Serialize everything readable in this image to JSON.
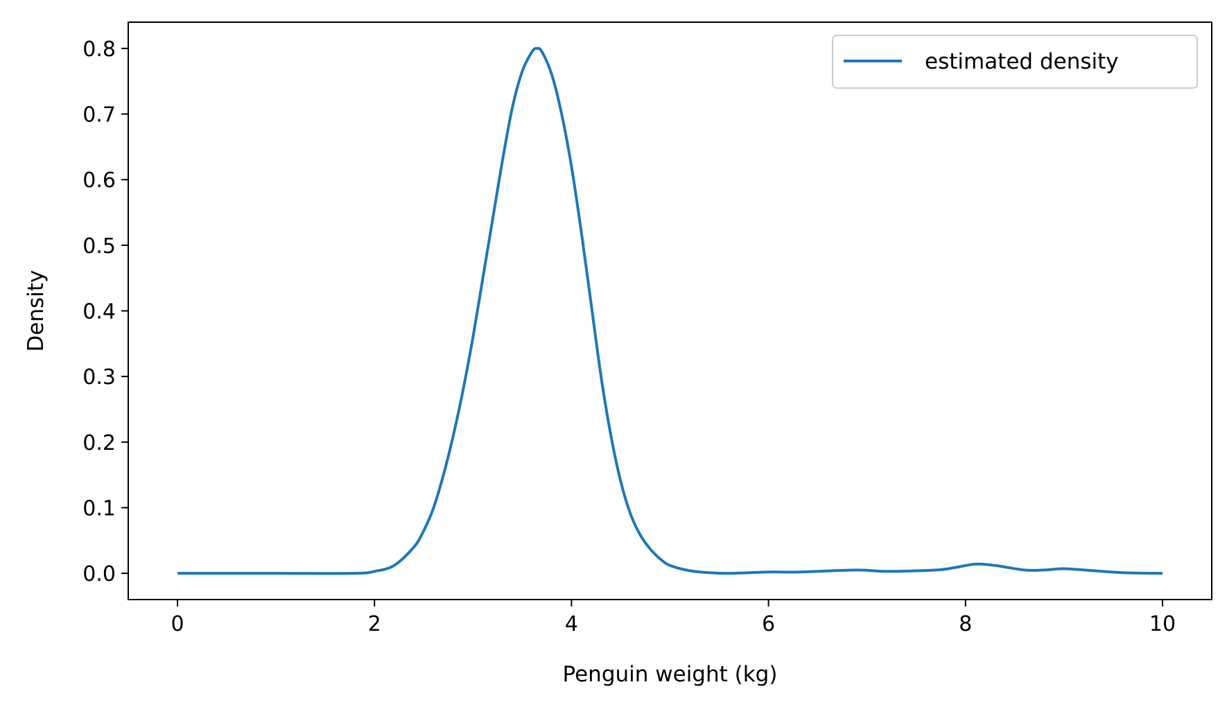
{
  "chart_data": {
    "type": "line",
    "title": "",
    "xlabel": "Penguin weight (kg)",
    "ylabel": "Density",
    "xlim": [
      -0.5,
      10.5
    ],
    "ylim": [
      -0.04,
      0.84
    ],
    "xticks": [
      0,
      2,
      4,
      6,
      8,
      10
    ],
    "xtick_labels": [
      "0",
      "2",
      "4",
      "6",
      "8",
      "10"
    ],
    "yticks": [
      0.0,
      0.1,
      0.2,
      0.3,
      0.4,
      0.5,
      0.6,
      0.7,
      0.8
    ],
    "ytick_labels": [
      "0.0",
      "0.1",
      "0.2",
      "0.3",
      "0.4",
      "0.5",
      "0.6",
      "0.7",
      "0.8"
    ],
    "grid": false,
    "legend_position": "upper-right",
    "series": [
      {
        "name": "estimated density",
        "color": "#1f77b4",
        "x": [
          0,
          1.0,
          1.8,
          2.0,
          2.2,
          2.4,
          2.5,
          2.6,
          2.7,
          2.8,
          2.9,
          3.0,
          3.1,
          3.2,
          3.3,
          3.4,
          3.5,
          3.6,
          3.65,
          3.7,
          3.8,
          3.9,
          4.0,
          4.1,
          4.2,
          4.3,
          4.4,
          4.5,
          4.6,
          4.7,
          4.8,
          4.9,
          5.0,
          5.2,
          5.4,
          5.6,
          6.0,
          6.3,
          6.9,
          7.2,
          7.7,
          7.9,
          8.1,
          8.3,
          8.6,
          8.8,
          9.0,
          9.3,
          9.6,
          10.0
        ],
        "y": [
          0.0,
          0.0,
          0.0,
          0.003,
          0.012,
          0.04,
          0.065,
          0.1,
          0.15,
          0.21,
          0.28,
          0.36,
          0.45,
          0.54,
          0.63,
          0.71,
          0.765,
          0.795,
          0.8,
          0.795,
          0.76,
          0.7,
          0.62,
          0.52,
          0.41,
          0.3,
          0.21,
          0.14,
          0.09,
          0.058,
          0.037,
          0.022,
          0.012,
          0.004,
          0.001,
          0.0,
          0.002,
          0.002,
          0.005,
          0.003,
          0.005,
          0.009,
          0.014,
          0.012,
          0.005,
          0.005,
          0.007,
          0.004,
          0.001,
          0.0
        ]
      }
    ]
  }
}
